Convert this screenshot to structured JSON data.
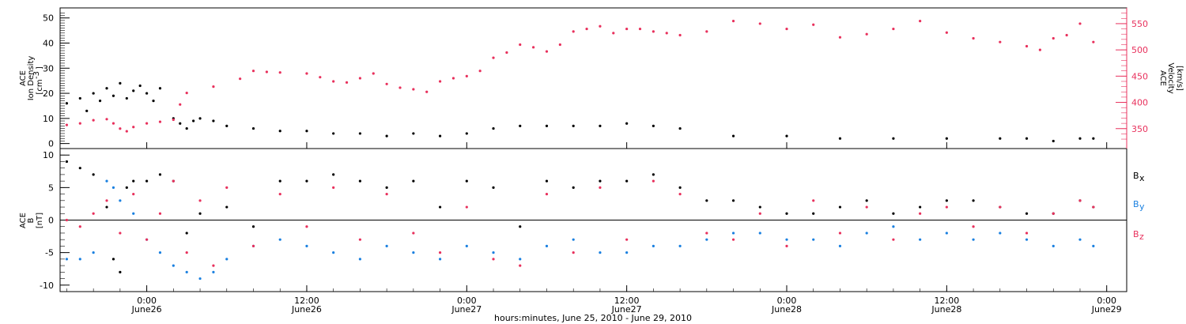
{
  "chart_data": [
    {
      "type": "scatter",
      "panel": "top",
      "x_unit": "hours since 0:00 June26 (2010)",
      "xlim": [
        -6.5,
        73.5
      ],
      "ylim_left": [
        -2,
        54
      ],
      "ylim_right": [
        312,
        580
      ],
      "ylabel_left_lines": [
        "ACE",
        "Ion Density",
        "[cm",
        "-3",
        "]"
      ],
      "ylabel_right_lines": [
        "ACE",
        "Velocity",
        "[km/s]"
      ],
      "y_ticks_left": [
        "0",
        "10",
        "20",
        "30",
        "40",
        "50"
      ],
      "y_ticks_right": [
        "350",
        "400",
        "450",
        "500",
        "550"
      ],
      "series": [
        {
          "name": "",
          "color": "#000000",
          "axis": "left",
          "x": [
            -6.0,
            -5.0,
            -4.5,
            -4.0,
            -3.5,
            -3.0,
            -2.5,
            -2.0,
            -1.5,
            -1.0,
            -0.5,
            0,
            0.5,
            1.0,
            2.0,
            2.5,
            3.0,
            3.5,
            4.0,
            5.0,
            6.0,
            8.0,
            10.0,
            12.0,
            14.0,
            16.0,
            18.0,
            20.0,
            22.0,
            24.0,
            26.0,
            28.0,
            30.0,
            32.0,
            34.0,
            36.0,
            38.0,
            40.0,
            44.0,
            48.0,
            52.0,
            56.0,
            60.0,
            64.0,
            66.0,
            68.0,
            70.0,
            71.0
          ],
          "y": [
            16,
            18,
            13,
            20,
            17,
            22,
            19,
            24,
            18,
            21,
            23,
            20,
            17,
            22,
            10,
            8,
            6,
            9,
            10,
            9,
            7,
            6,
            5,
            5,
            4,
            4,
            3,
            4,
            3,
            4,
            6,
            7,
            7,
            7,
            7,
            8,
            7,
            6,
            3,
            3,
            2,
            2,
            2,
            2,
            2,
            1,
            2,
            2
          ]
        },
        {
          "name": "",
          "color": "#e8305c",
          "axis": "right",
          "x": [
            -6.0,
            -5.0,
            -4.0,
            -3.0,
            -2.5,
            -2.0,
            -1.5,
            -1.0,
            0,
            1.0,
            2.0,
            2.5,
            3.0,
            5.0,
            7.0,
            8.0,
            9.0,
            10.0,
            12.0,
            13.0,
            14.0,
            15.0,
            16.0,
            17.0,
            18.0,
            19.0,
            20.0,
            21.0,
            22.0,
            23.0,
            24.0,
            25.0,
            26.0,
            27.0,
            28.0,
            29.0,
            30.0,
            31.0,
            32.0,
            33.0,
            34.0,
            35.0,
            36.0,
            37.0,
            38.0,
            39.0,
            40.0,
            42.0,
            44.0,
            46.0,
            48.0,
            50.0,
            52.0,
            54.0,
            56.0,
            58.0,
            60.0,
            62.0,
            64.0,
            66.0,
            67.0,
            68.0,
            69.0,
            70.0,
            71.0
          ],
          "y": [
            357,
            360,
            366,
            368,
            360,
            350,
            345,
            353,
            360,
            363,
            367,
            396,
            418,
            430,
            445,
            460,
            458,
            457,
            455,
            448,
            440,
            438,
            446,
            455,
            435,
            428,
            425,
            420,
            440,
            446,
            450,
            460,
            485,
            495,
            510,
            505,
            497,
            510,
            535,
            540,
            545,
            532,
            540,
            540,
            535,
            532,
            528,
            535,
            555,
            550,
            540,
            548,
            524,
            530,
            540,
            555,
            533,
            522,
            515,
            507,
            500,
            522,
            528,
            550,
            515
          ]
        }
      ]
    },
    {
      "type": "scatter",
      "panel": "bottom",
      "x_unit": "hours since 0:00 June26 (2010)",
      "xlim": [
        -6.5,
        73.5
      ],
      "ylim": [
        -11,
        11
      ],
      "ylabel_lines": [
        "ACE",
        "B",
        "[nT]"
      ],
      "y_ticks": [
        "-10",
        "-5",
        "0",
        "5",
        "10"
      ],
      "legend": [
        {
          "label": "B",
          "sub": "x",
          "color": "#000000"
        },
        {
          "label": "B",
          "sub": "y",
          "color": "#1a80e0"
        },
        {
          "label": "B",
          "sub": "z",
          "color": "#e8305c"
        }
      ],
      "series": [
        {
          "name": "Bx",
          "color": "#000000",
          "x": [
            -6.0,
            -5.0,
            -4.0,
            -3.0,
            -2.5,
            -2.0,
            -1.5,
            -1.0,
            0,
            1.0,
            2.0,
            3.0,
            4.0,
            6.0,
            8.0,
            10.0,
            12.0,
            14.0,
            16.0,
            18.0,
            20.0,
            22.0,
            24.0,
            26.0,
            28.0,
            30.0,
            32.0,
            34.0,
            36.0,
            38.0,
            40.0,
            42.0,
            44.0,
            46.0,
            48.0,
            50.0,
            52.0,
            54.0,
            56.0,
            58.0,
            60.0,
            62.0,
            64.0,
            66.0,
            68.0,
            70.0,
            71.0
          ],
          "y": [
            9,
            8,
            7,
            2,
            -6,
            -8,
            5,
            6,
            6,
            7,
            6,
            -2,
            1,
            2,
            -1,
            6,
            6,
            7,
            6,
            5,
            6,
            2,
            6,
            5,
            -1,
            6,
            5,
            6,
            6,
            7,
            5,
            3,
            3,
            2,
            1,
            1,
            2,
            3,
            1,
            2,
            3,
            3,
            2,
            1,
            1,
            3,
            2
          ]
        },
        {
          "name": "By",
          "color": "#1a80e0",
          "x": [
            -6.0,
            -5.0,
            -4.0,
            -3.0,
            -2.5,
            -2.0,
            -1.0,
            0,
            1.0,
            2.0,
            3.0,
            4.0,
            5.0,
            6.0,
            8.0,
            10.0,
            12.0,
            14.0,
            16.0,
            18.0,
            20.0,
            22.0,
            24.0,
            26.0,
            28.0,
            30.0,
            32.0,
            34.0,
            36.0,
            38.0,
            40.0,
            42.0,
            44.0,
            46.0,
            48.0,
            50.0,
            52.0,
            54.0,
            56.0,
            58.0,
            60.0,
            62.0,
            64.0,
            66.0,
            68.0,
            70.0,
            71.0
          ],
          "y": [
            -6,
            -6,
            -5,
            6,
            5,
            3,
            1,
            -3,
            -5,
            -7,
            -8,
            -9,
            -8,
            -6,
            -4,
            -3,
            -4,
            -5,
            -6,
            -4,
            -5,
            -6,
            -4,
            -5,
            -6,
            -4,
            -3,
            -5,
            -5,
            -4,
            -4,
            -3,
            -2,
            -2,
            -3,
            -3,
            -4,
            -2,
            -1,
            -3,
            -2,
            -3,
            -2,
            -3,
            -4,
            -3,
            -4
          ]
        },
        {
          "name": "Bz",
          "color": "#e8305c",
          "x": [
            -6.0,
            -5.0,
            -4.0,
            -3.0,
            -2.0,
            -1.0,
            0,
            1.0,
            2.0,
            3.0,
            4.0,
            5.0,
            6.0,
            8.0,
            10.0,
            12.0,
            14.0,
            16.0,
            18.0,
            20.0,
            22.0,
            24.0,
            26.0,
            28.0,
            30.0,
            32.0,
            34.0,
            36.0,
            38.0,
            40.0,
            42.0,
            44.0,
            46.0,
            48.0,
            50.0,
            52.0,
            54.0,
            56.0,
            58.0,
            60.0,
            62.0,
            64.0,
            66.0,
            68.0,
            70.0,
            71.0
          ],
          "y": [
            0,
            -1,
            1,
            3,
            -2,
            4,
            -3,
            1,
            6,
            -5,
            3,
            -7,
            5,
            -4,
            4,
            -1,
            5,
            -3,
            4,
            -2,
            -5,
            2,
            -6,
            -7,
            4,
            -5,
            5,
            -3,
            6,
            4,
            -2,
            -3,
            1,
            -4,
            3,
            -2,
            2,
            -3,
            1,
            2,
            -1,
            2,
            -2,
            1,
            3,
            2
          ]
        }
      ],
      "zero_line": true
    }
  ],
  "x_axis": {
    "tick_labels": [
      {
        "hours": 0,
        "time": "0:00",
        "date": "June26"
      },
      {
        "hours": 12,
        "time": "12:00",
        "date": "June26"
      },
      {
        "hours": 24,
        "time": "0:00",
        "date": "June27"
      },
      {
        "hours": 36,
        "time": "12:00",
        "date": "June27"
      },
      {
        "hours": 48,
        "time": "0:00",
        "date": "June28"
      },
      {
        "hours": 60,
        "time": "12:00",
        "date": "June28"
      },
      {
        "hours": 72,
        "time": "0:00",
        "date": "June29"
      }
    ],
    "title": "hours:minutes, June 25, 2010 - June 29, 2010"
  },
  "colors": {
    "density": "#000000",
    "velocity": "#e8305c",
    "bx": "#000000",
    "by": "#1a80e0",
    "bz": "#e8305c"
  }
}
